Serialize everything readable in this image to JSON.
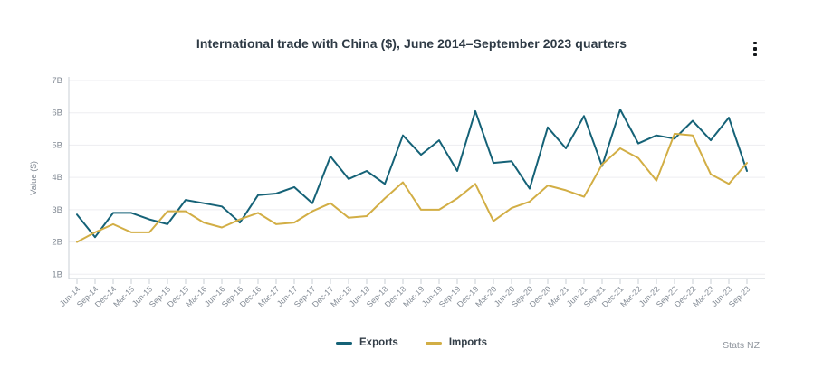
{
  "header": {
    "title": "International trade with China ($), June 2014–September 2023 quarters",
    "menu_icon": "kebab-menu"
  },
  "chart_data": {
    "type": "line",
    "title": "International trade with China ($), June 2014–September 2023 quarters",
    "xlabel": "",
    "ylabel": "Value ($)",
    "ylim": [
      1,
      7
    ],
    "yticks": [
      1,
      2,
      3,
      4,
      5,
      6,
      7
    ],
    "ytick_labels": [
      "1B",
      "2B",
      "3B",
      "4B",
      "5B",
      "6B",
      "7B"
    ],
    "grid": true,
    "legend_position": "bottom-center",
    "categories": [
      "Jun-14",
      "Sep-14",
      "Dec-14",
      "Mar-15",
      "Jun-15",
      "Sep-15",
      "Dec-15",
      "Mar-16",
      "Jun-16",
      "Sep-16",
      "Dec-16",
      "Mar-17",
      "Jun-17",
      "Sep-17",
      "Dec-17",
      "Mar-18",
      "Jun-18",
      "Sep-18",
      "Dec-18",
      "Mar-19",
      "Jun-19",
      "Sep-19",
      "Dec-19",
      "Mar-20",
      "Jun-20",
      "Sep-20",
      "Dec-20",
      "Mar-21",
      "Jun-21",
      "Sep-21",
      "Dec-21",
      "Mar-22",
      "Jun-22",
      "Sep-22",
      "Dec-22",
      "Mar-23",
      "Jun-23",
      "Sep-23"
    ],
    "series": [
      {
        "name": "Exports",
        "color": "#156277",
        "values": [
          2.85,
          2.15,
          2.9,
          2.9,
          2.7,
          2.55,
          3.3,
          3.2,
          3.1,
          2.6,
          3.45,
          3.5,
          3.7,
          3.2,
          4.65,
          3.95,
          4.2,
          3.8,
          5.3,
          4.7,
          5.15,
          4.2,
          6.05,
          4.45,
          4.5,
          3.65,
          5.55,
          4.9,
          5.9,
          4.35,
          6.1,
          5.05,
          5.3,
          5.2,
          5.75,
          5.15,
          5.85,
          4.2
        ]
      },
      {
        "name": "Imports",
        "color": "#d2ae45",
        "values": [
          2.0,
          2.3,
          2.55,
          2.3,
          2.3,
          2.95,
          2.95,
          2.6,
          2.45,
          2.7,
          2.9,
          2.55,
          2.6,
          2.95,
          3.2,
          2.75,
          2.8,
          3.35,
          3.85,
          3.0,
          3.0,
          3.35,
          3.8,
          2.65,
          3.05,
          3.25,
          3.75,
          3.6,
          3.4,
          4.4,
          4.9,
          4.6,
          3.9,
          5.35,
          5.3,
          4.1,
          3.8,
          4.45
        ]
      }
    ],
    "colors": {
      "grid_line": "#ededf1",
      "axis_line": "#c8cfd6",
      "tick_label": "#828a94"
    }
  },
  "footer": {
    "attribution": "Stats NZ"
  }
}
